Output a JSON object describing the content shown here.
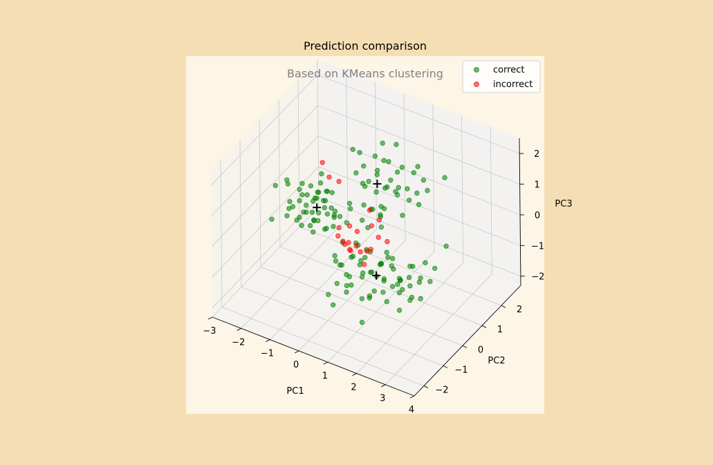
{
  "chart_data": {
    "type": "scatter",
    "title": "Prediction comparison",
    "subtitle": "Based on KMeans clustering",
    "xlabel": "PC1",
    "ylabel": "PC2",
    "zlabel": "PC3",
    "xlim": [
      -3,
      4
    ],
    "ylim": [
      -2.5,
      3
    ],
    "zlim": [
      -2.3,
      2.5
    ],
    "xticks": [
      "−3",
      "−2",
      "−1",
      "0",
      "1",
      "2",
      "3",
      "4"
    ],
    "yticks": [
      "−2",
      "−1",
      "0",
      "1",
      "2"
    ],
    "zticks": [
      "−2",
      "−1",
      "0",
      "1",
      "2"
    ],
    "grid": true,
    "legend_position": "top-right",
    "colors": {
      "figure_bg": "#f5deb3",
      "axes_bg": "#fdf5e6",
      "pane": "#f2f2f2",
      "correct": "#008000",
      "incorrect": "#ff0000",
      "centroid": "#000000"
    },
    "series": [
      {
        "name": "correct",
        "color": "#008000",
        "points": [
          [
            -2.2,
            0.3,
            -0.3
          ],
          [
            -2.0,
            0.2,
            -0.1
          ],
          [
            -1.9,
            0.4,
            0.0
          ],
          [
            -1.8,
            0.1,
            -0.4
          ],
          [
            -1.7,
            0.5,
            0.2
          ],
          [
            -1.6,
            0.3,
            -0.2
          ],
          [
            -1.5,
            0.6,
            0.1
          ],
          [
            -1.4,
            0.2,
            -0.5
          ],
          [
            -1.3,
            0.4,
            0.3
          ],
          [
            -1.2,
            0.1,
            -0.2
          ],
          [
            -1.1,
            0.5,
            0.0
          ],
          [
            -1.0,
            0.3,
            0.4
          ],
          [
            -0.9,
            0.7,
            -0.3
          ],
          [
            -0.8,
            0.2,
            0.1
          ],
          [
            -0.7,
            0.4,
            -0.1
          ],
          [
            -2.1,
            0.7,
            0.1
          ],
          [
            -1.9,
            -0.1,
            0.3
          ],
          [
            -1.7,
            0.8,
            -0.2
          ],
          [
            -1.5,
            -0.2,
            0.0
          ],
          [
            -1.3,
            0.9,
            0.2
          ],
          [
            -1.1,
            -0.1,
            -0.4
          ],
          [
            -0.9,
            0.6,
            0.5
          ],
          [
            -0.7,
            0.0,
            -0.2
          ],
          [
            -2.3,
            0.4,
            0.4
          ],
          [
            -1.6,
            0.1,
            0.5
          ],
          [
            -1.4,
            0.6,
            -0.6
          ],
          [
            -1.2,
            0.8,
            0.3
          ],
          [
            -1.0,
            -0.2,
            0.1
          ],
          [
            -0.8,
            0.5,
            -0.5
          ],
          [
            -0.6,
            0.3,
            0.2
          ],
          [
            -1.8,
            0.4,
            0.6
          ],
          [
            -1.6,
            0.6,
            -0.4
          ],
          [
            -1.4,
            0.0,
            0.3
          ],
          [
            -1.2,
            0.3,
            0.6
          ],
          [
            -1.0,
            0.7,
            -0.1
          ],
          [
            -2.0,
            -0.1,
            -0.2
          ],
          [
            -1.5,
            0.9,
            0.4
          ],
          [
            -1.1,
            0.2,
            0.7
          ],
          [
            -0.9,
            -0.1,
            0.3
          ],
          [
            -1.7,
            0.2,
            -0.6
          ],
          [
            -2.6,
            0.0,
            -0.6
          ],
          [
            -2.8,
            0.5,
            0.1
          ],
          [
            -0.5,
            0.4,
            0.0
          ],
          [
            -0.4,
            0.6,
            -0.3
          ],
          [
            -1.3,
            0.1,
            0.9
          ],
          [
            -1.9,
            0.6,
            -0.5
          ],
          [
            -1.1,
            0.5,
            -0.7
          ],
          [
            -0.8,
            0.1,
            0.6
          ],
          [
            -1.4,
            0.8,
            0.8
          ],
          [
            -2.2,
            0.2,
            0.7
          ],
          [
            -0.3,
            0.8,
            2.0
          ],
          [
            -0.2,
            1.0,
            1.8
          ],
          [
            0.0,
            0.9,
            1.5
          ],
          [
            0.2,
            1.2,
            1.7
          ],
          [
            0.4,
            1.0,
            1.3
          ],
          [
            0.6,
            1.3,
            1.6
          ],
          [
            0.8,
            1.1,
            1.2
          ],
          [
            1.0,
            1.4,
            1.5
          ],
          [
            0.1,
            0.7,
            1.1
          ],
          [
            0.3,
            1.5,
            1.4
          ],
          [
            0.5,
            0.8,
            0.9
          ],
          [
            0.7,
            1.6,
            1.1
          ],
          [
            0.9,
            1.2,
            0.8
          ],
          [
            -0.1,
            1.3,
            0.7
          ],
          [
            0.2,
            0.6,
            0.5
          ],
          [
            0.4,
            1.4,
            0.6
          ],
          [
            0.6,
            0.9,
            0.4
          ],
          [
            0.8,
            1.5,
            0.7
          ],
          [
            1.1,
            1.0,
            0.9
          ],
          [
            1.2,
            1.7,
            1.2
          ],
          [
            -0.4,
            1.1,
            1.0
          ],
          [
            0.0,
            1.6,
            0.9
          ],
          [
            0.3,
            0.9,
            0.2
          ],
          [
            0.5,
            1.2,
            0.1
          ],
          [
            0.7,
            0.7,
            0.3
          ],
          [
            0.9,
            1.8,
            0.5
          ],
          [
            1.3,
            1.3,
            0.6
          ],
          [
            1.4,
            1.9,
            0.9
          ],
          [
            -0.2,
            0.5,
            0.3
          ],
          [
            0.1,
            1.1,
            0.0
          ],
          [
            0.6,
            1.7,
            1.9
          ],
          [
            1.0,
            2.2,
            1.0
          ],
          [
            1.5,
            1.5,
            0.4
          ],
          [
            0.2,
            1.8,
            0.3
          ],
          [
            -0.3,
            1.4,
            0.4
          ],
          [
            0.8,
            0.6,
            0.0
          ],
          [
            1.2,
            1.1,
            0.2
          ],
          [
            1.6,
            1.8,
            0.7
          ],
          [
            0.4,
            0.5,
            -0.1
          ],
          [
            0.0,
            0.8,
            -0.2
          ],
          [
            0.6,
            1.0,
            2.4
          ],
          [
            1.8,
            2.4,
            0.8
          ],
          [
            -0.5,
            0.9,
            0.1
          ],
          [
            1.1,
            2.0,
            0.3
          ],
          [
            0.3,
            1.3,
            -0.3
          ],
          [
            0.5,
            -1.0,
            -0.3
          ],
          [
            0.7,
            -0.8,
            -0.1
          ],
          [
            0.9,
            -1.2,
            -0.4
          ],
          [
            1.1,
            -0.9,
            0.0
          ],
          [
            1.3,
            -1.1,
            -0.2
          ],
          [
            1.5,
            -0.7,
            -0.5
          ],
          [
            1.7,
            -1.3,
            0.1
          ],
          [
            1.9,
            -0.9,
            -0.3
          ],
          [
            2.1,
            -1.2,
            -0.1
          ],
          [
            2.3,
            -0.8,
            -0.4
          ],
          [
            2.5,
            -1.0,
            0.0
          ],
          [
            2.7,
            -1.3,
            -0.2
          ],
          [
            0.6,
            -1.4,
            -0.6
          ],
          [
            0.8,
            -0.6,
            0.2
          ],
          [
            1.0,
            -1.5,
            -0.1
          ],
          [
            1.2,
            -0.5,
            -0.6
          ],
          [
            1.4,
            -1.4,
            0.3
          ],
          [
            1.6,
            -0.6,
            -0.1
          ],
          [
            1.8,
            -1.5,
            -0.5
          ],
          [
            2.0,
            -0.6,
            0.2
          ],
          [
            2.2,
            -1.4,
            -0.3
          ],
          [
            2.4,
            -0.7,
            -0.6
          ],
          [
            2.6,
            -1.5,
            0.1
          ],
          [
            2.8,
            -0.9,
            -0.2
          ],
          [
            3.0,
            -1.2,
            -0.4
          ],
          [
            0.4,
            -1.2,
            0.1
          ],
          [
            0.9,
            -0.4,
            -0.3
          ],
          [
            1.3,
            -1.7,
            -0.2
          ],
          [
            1.7,
            -0.4,
            0.0
          ],
          [
            2.1,
            -1.7,
            -0.1
          ],
          [
            2.5,
            -0.5,
            -0.3
          ],
          [
            2.9,
            -1.6,
            -0.5
          ],
          [
            3.1,
            -0.8,
            0.1
          ],
          [
            3.3,
            -1.1,
            -0.3
          ],
          [
            0.7,
            -1.6,
            0.3
          ],
          [
            1.1,
            -1.3,
            0.4
          ],
          [
            1.5,
            -1.0,
            0.5
          ],
          [
            1.9,
            -1.1,
            0.3
          ],
          [
            2.3,
            -1.1,
            0.4
          ],
          [
            2.7,
            -0.6,
            0.2
          ],
          [
            0.3,
            -0.8,
            -0.5
          ],
          [
            1.0,
            -0.7,
            -0.7
          ],
          [
            1.6,
            -1.6,
            -0.6
          ],
          [
            2.2,
            -0.5,
            -0.5
          ],
          [
            2.8,
            -1.4,
            0.3
          ],
          [
            3.2,
            -1.4,
            -0.1
          ],
          [
            3.5,
            -0.9,
            0.2
          ],
          [
            3.8,
            -0.5,
            1.2
          ],
          [
            3.6,
            -0.8,
            0.6
          ],
          [
            3.4,
            -1.3,
            0.4
          ],
          [
            0.5,
            -1.7,
            -0.8
          ],
          [
            1.2,
            -1.8,
            -0.4
          ],
          [
            2.0,
            -1.8,
            -0.3
          ],
          [
            2.6,
            -1.8,
            -0.2
          ],
          [
            1.8,
            -1.9,
            -1.1
          ],
          [
            0.8,
            -1.9,
            -0.9
          ],
          [
            1.4,
            -0.3,
            -0.4
          ],
          [
            2.4,
            -0.3,
            -0.1
          ],
          [
            0.2,
            -0.5,
            0.0
          ],
          [
            3.0,
            -0.4,
            0.3
          ],
          [
            1.5,
            -1.2,
            0.7
          ],
          [
            2.0,
            -0.9,
            0.6
          ],
          [
            2.5,
            -1.3,
            0.5
          ],
          [
            1.0,
            -1.0,
            0.6
          ],
          [
            0.6,
            -0.9,
            -1.0
          ]
        ]
      },
      {
        "name": "incorrect",
        "color": "#ff0000",
        "points": [
          [
            -1.5,
            1.0,
            1.0
          ],
          [
            -1.2,
            0.9,
            0.7
          ],
          [
            -1.0,
            1.1,
            0.5
          ],
          [
            -0.4,
            0.2,
            -0.2
          ],
          [
            -0.3,
            0.0,
            -0.3
          ],
          [
            -0.2,
            0.1,
            -0.5
          ],
          [
            0.0,
            -0.1,
            -0.4
          ],
          [
            0.1,
            0.0,
            -0.6
          ],
          [
            0.2,
            -0.2,
            -0.2
          ],
          [
            0.0,
            0.2,
            -0.8
          ],
          [
            0.3,
            0.1,
            0.0
          ],
          [
            0.4,
            -0.1,
            -0.3
          ],
          [
            0.5,
            0.3,
            -0.7
          ],
          [
            0.6,
            0.4,
            0.1
          ],
          [
            0.7,
            0.2,
            -0.5
          ],
          [
            0.8,
            0.5,
            0.3
          ],
          [
            0.9,
            0.3,
            -0.1
          ],
          [
            1.0,
            0.6,
            -0.4
          ],
          [
            0.2,
            0.4,
            -0.9
          ],
          [
            -0.1,
            0.3,
            -0.1
          ],
          [
            0.4,
            0.6,
            0.4
          ],
          [
            0.6,
            0.0,
            -0.9
          ]
        ]
      }
    ],
    "centroids": [
      [
        -1.3,
        0.4,
        0.0
      ],
      [
        0.4,
        1.0,
        1.0
      ],
      [
        1.7,
        -1.0,
        -0.2
      ]
    ]
  }
}
